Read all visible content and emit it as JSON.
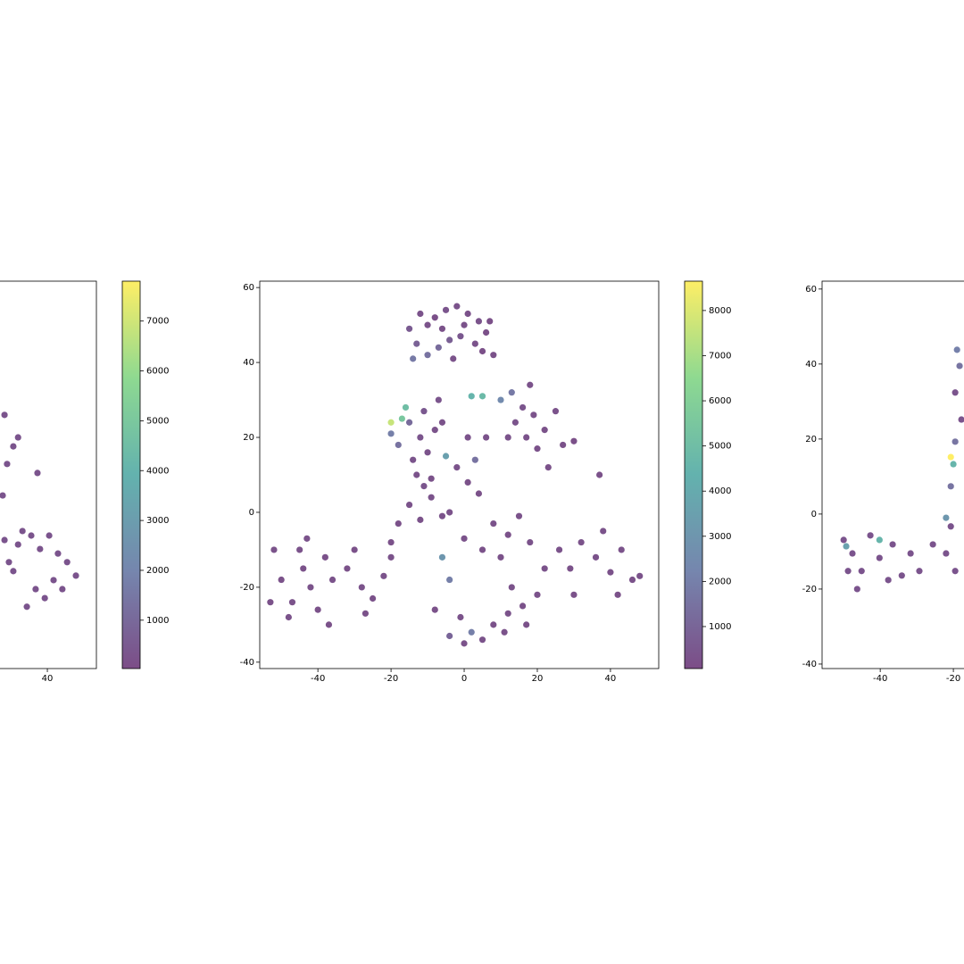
{
  "chart_data": [
    {
      "type": "scatter",
      "colormap": "viridis",
      "alpha": 0.7,
      "xlim": [
        -55.6,
        53.4
      ],
      "ylim": [
        -41.7,
        61.7
      ],
      "xticks": [
        40
      ],
      "clim": [
        30,
        7800
      ],
      "cticks": [
        1000,
        2000,
        3000,
        4000,
        5000,
        6000,
        7000
      ],
      "x": [
        28.3,
        32.0,
        35.6,
        38.0,
        40.5,
        42.9,
        45.4,
        47.8,
        41.7,
        36.8,
        34.4,
        39.3,
        30.7,
        44.1,
        33.2,
        37.3,
        28.3,
        30.7,
        32.0,
        29.0,
        27.8,
        29.5
      ],
      "y": [
        -7.4,
        -8.6,
        -6.2,
        -9.8,
        -6.2,
        -11.0,
        -13.3,
        -16.9,
        -18.1,
        -20.5,
        -25.2,
        -22.9,
        -15.7,
        -20.5,
        -5.0,
        10.5,
        26.0,
        17.6,
        20.0,
        12.9,
        4.5,
        -13.3
      ],
      "c": [
        300,
        300,
        300,
        300,
        300,
        300,
        300,
        300,
        300,
        300,
        300,
        300,
        300,
        300,
        300,
        300,
        300,
        300,
        300,
        300,
        300,
        300
      ]
    },
    {
      "type": "scatter",
      "colormap": "viridis",
      "alpha": 0.7,
      "xlim": [
        -55.9,
        53.2
      ],
      "ylim": [
        -41.7,
        61.7
      ],
      "xticks": [
        -40,
        -20,
        0,
        20,
        40
      ],
      "yticks": [
        -40,
        -20,
        0,
        20,
        40,
        60
      ],
      "clim": [
        70,
        8650
      ],
      "cticks": [
        1000,
        2000,
        3000,
        4000,
        5000,
        6000,
        7000,
        8000
      ],
      "x": [
        -10,
        -8,
        -5,
        -2,
        1,
        4,
        6,
        3,
        -1,
        -4,
        -7,
        -10,
        -13,
        -15,
        -12,
        -6,
        0,
        5,
        8,
        -3,
        -14,
        7,
        -20,
        -18,
        -15,
        -12,
        -10,
        -14,
        -8,
        -11,
        -16,
        -20,
        -17,
        -13,
        -9,
        -6,
        -7,
        10,
        13,
        16,
        19,
        14,
        17,
        20,
        12,
        22,
        25,
        27,
        30,
        18,
        23,
        2,
        5,
        1,
        3,
        -2,
        1,
        4,
        -4,
        0,
        -5,
        6,
        -15,
        -12,
        -9,
        -18,
        -6,
        -11,
        -20,
        -52,
        -50,
        -47,
        -44,
        -42,
        -40,
        -45,
        -38,
        -48,
        -37,
        -43,
        -53,
        -36,
        -32,
        -28,
        -25,
        -22,
        -30,
        -20,
        -27,
        -6,
        -4,
        -1,
        2,
        5,
        8,
        0,
        -4,
        12,
        -8,
        8,
        12,
        15,
        10,
        18,
        5,
        13,
        16,
        20,
        17,
        22,
        11,
        26,
        29,
        32,
        30,
        36,
        40,
        43,
        46,
        38,
        42,
        48,
        37
      ],
      "y": [
        50,
        52,
        54,
        55,
        53,
        51,
        48,
        45,
        47,
        46,
        44,
        42,
        45,
        49,
        53,
        49,
        50,
        43,
        42,
        41,
        41,
        51,
        21,
        18,
        24,
        20,
        16,
        14,
        22,
        27,
        28,
        24,
        25,
        10,
        9,
        24,
        30,
        30,
        32,
        28,
        26,
        24,
        20,
        17,
        20,
        22,
        27,
        18,
        19,
        34,
        12,
        31,
        31,
        20,
        14,
        12,
        8,
        5,
        0,
        -7,
        15,
        20,
        2,
        -2,
        4,
        -3,
        -1,
        7,
        -8,
        -10,
        -18,
        -24,
        -15,
        -20,
        -26,
        -10,
        -12,
        -28,
        -30,
        -7,
        -24,
        -18,
        -15,
        -20,
        -23,
        -17,
        -10,
        -12,
        -27,
        -12,
        -18,
        -28,
        -32,
        -34,
        -30,
        -35,
        -33,
        -27,
        -26,
        -3,
        -6,
        -1,
        -12,
        -8,
        -10,
        -20,
        -25,
        -22,
        -30,
        -15,
        -32,
        -10,
        -15,
        -8,
        -22,
        -12,
        -16,
        -10,
        -18,
        -5,
        -22,
        -17,
        10
      ],
      "c": [
        300,
        200,
        400,
        300,
        250,
        350,
        200,
        300,
        500,
        800,
        1200,
        1500,
        900,
        600,
        300,
        250,
        300,
        200,
        250,
        300,
        1800,
        200,
        2000,
        1500,
        1200,
        400,
        300,
        350,
        300,
        500,
        5000,
        7600,
        5500,
        300,
        250,
        300,
        400,
        2500,
        1800,
        400,
        300,
        350,
        300,
        250,
        300,
        250,
        300,
        250,
        200,
        300,
        250,
        4500,
        4800,
        300,
        1500,
        300,
        250,
        250,
        300,
        300,
        3500,
        300,
        300,
        250,
        300,
        250,
        300,
        400,
        250,
        300,
        250,
        300,
        250,
        300,
        250,
        300,
        250,
        300,
        250,
        300,
        250,
        300,
        250,
        300,
        250,
        300,
        250,
        300,
        250,
        3000,
        2000,
        300,
        2000,
        300,
        250,
        300,
        1000,
        300,
        250,
        300,
        250,
        300,
        250,
        300,
        250,
        300,
        250,
        300,
        250,
        300,
        300,
        300,
        250,
        300,
        250,
        300,
        250,
        300,
        250,
        300,
        250,
        300,
        250
      ]
    },
    {
      "type": "scatter",
      "colormap": "viridis",
      "alpha": 0.7,
      "xlim": [
        -55.9,
        53.2
      ],
      "ylim": [
        -41.2,
        62.1
      ],
      "xticks": [
        -40,
        -20
      ],
      "yticks": [
        -40,
        -20,
        0,
        20,
        40,
        60
      ],
      "clim": [
        0,
        8600
      ],
      "x": [
        -50.0,
        -47.6,
        -45.1,
        -42.7,
        -40.2,
        -37.8,
        -36.6,
        -46.3,
        -48.8,
        -34.1,
        -31.7,
        -29.3,
        -25.6,
        -22.0,
        -20.7,
        -19.5,
        -49.3,
        -40.2,
        -20.7,
        -20.0,
        -19.5,
        -19.0,
        -18.3,
        -19.5,
        -20.7,
        -22.0,
        -17.8
      ],
      "y": [
        -6.9,
        -10.5,
        -15.2,
        -5.7,
        -11.7,
        -17.6,
        -8.1,
        -20.0,
        -15.2,
        -16.4,
        -10.5,
        -15.2,
        -8.1,
        -10.5,
        -3.3,
        -15.2,
        -8.6,
        -6.9,
        15.2,
        13.3,
        19.3,
        43.8,
        39.5,
        32.4,
        7.4,
        -1.0,
        25.2
      ],
      "c": [
        300,
        300,
        300,
        300,
        300,
        300,
        300,
        300,
        300,
        300,
        300,
        300,
        300,
        300,
        300,
        300,
        3500,
        4500,
        8600,
        4500,
        1500,
        2000,
        1500,
        300,
        1500,
        3000,
        300
      ]
    }
  ]
}
